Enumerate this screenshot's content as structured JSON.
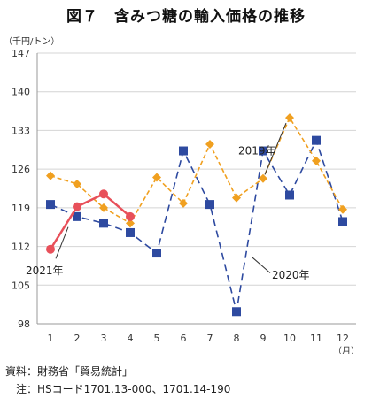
{
  "title": "図７　含みつ糖の輸入価格の推移",
  "unit_label": "（千円/トン）",
  "notes": {
    "source": "資料：財務省「貿易統計」",
    "note": "注：HSコード1701.13-000、1701.14-190"
  },
  "chart_data": {
    "type": "line",
    "title": "図７　含みつ糖の輸入価格の推移",
    "xlabel": "（月）",
    "ylabel": "（千円/トン）",
    "categories": [
      "1",
      "2",
      "3",
      "4",
      "5",
      "6",
      "7",
      "8",
      "9",
      "10",
      "11",
      "12"
    ],
    "ylim": [
      98,
      147
    ],
    "yticks": [
      98,
      105,
      112,
      119,
      126,
      133,
      140,
      147
    ],
    "grid": "horizontal",
    "series": [
      {
        "name": "2019年",
        "color": "#f0a020",
        "style": "dashed",
        "marker": "diamond",
        "values": [
          124.8,
          123.3,
          119.0,
          116.2,
          124.5,
          119.8,
          130.5,
          120.8,
          124.3,
          135.3,
          127.5,
          118.7
        ]
      },
      {
        "name": "2020年",
        "color": "#2e4aa0",
        "style": "dashed",
        "marker": "square",
        "values": [
          119.6,
          117.4,
          116.2,
          114.5,
          110.8,
          129.3,
          119.6,
          100.2,
          129.3,
          121.3,
          131.2,
          116.5
        ]
      },
      {
        "name": "2021年",
        "color": "#e8505a",
        "style": "solid",
        "marker": "circle",
        "values": [
          111.5,
          119.2,
          121.5,
          117.4,
          null,
          null,
          null,
          null,
          null,
          null,
          null,
          null
        ]
      }
    ],
    "annotations": [
      "2019年",
      "2020年",
      "2021年"
    ]
  }
}
